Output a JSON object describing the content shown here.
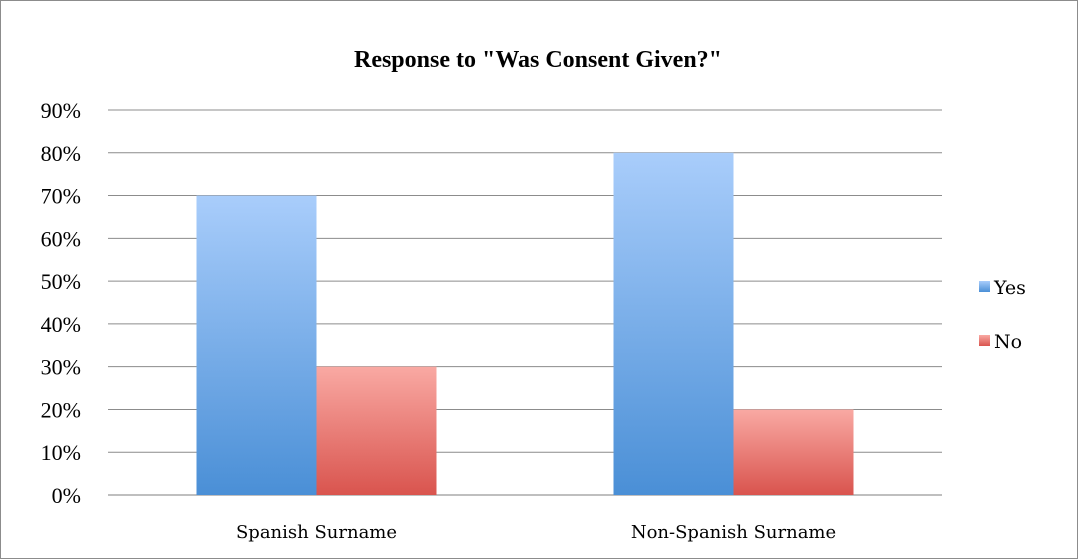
{
  "chart_data": {
    "type": "bar",
    "title": "Response to \"Was Consent Given?\"",
    "xlabel": "",
    "ylabel": "",
    "categories": [
      "Spanish Surname",
      "Non-Spanish Surname"
    ],
    "series": [
      {
        "name": "Yes",
        "values": [
          70,
          80
        ],
        "color_top": "#a9cdfb",
        "color_bottom": "#4a8fd6"
      },
      {
        "name": "No",
        "values": [
          30,
          20
        ],
        "color_top": "#f9a9a3",
        "color_bottom": "#d9544e"
      }
    ],
    "ylim": [
      0,
      90
    ],
    "y_ticks": [
      "0%",
      "10%",
      "20%",
      "30%",
      "40%",
      "50%",
      "60%",
      "70%",
      "80%",
      "90%"
    ],
    "y_tick_values": [
      0,
      10,
      20,
      30,
      40,
      50,
      60,
      70,
      80,
      90
    ],
    "grid": true,
    "legend_position": "right"
  }
}
